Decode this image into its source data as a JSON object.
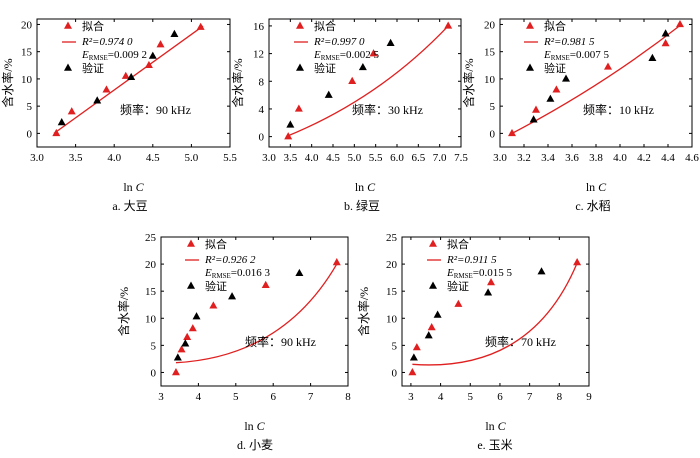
{
  "chart_data": [
    {
      "id": "a",
      "type": "scatter",
      "caption": "a. 大豆",
      "xlabel_prefix": "ln ",
      "xlabel_var": "C",
      "ylabel": "含水率/%",
      "xlim": [
        3.0,
        5.5
      ],
      "ylim": [
        -2.5,
        21
      ],
      "xticks": [
        "3.0",
        "3.5",
        "4.0",
        "4.5",
        "5.0",
        "5.5"
      ],
      "xtick_values": [
        3.0,
        3.5,
        4.0,
        4.5,
        5.0,
        5.5
      ],
      "yticks": [
        "0",
        "5",
        "10",
        "15",
        "20"
      ],
      "ytick_values": [
        0,
        5,
        10,
        15,
        20
      ],
      "legend": {
        "fit": "拟合",
        "r2_label": "R²=0.974 0",
        "rmse_label": "E",
        "rmse_sub": "RMSE",
        "rmse_value": "=0.009 2",
        "validation": "验证"
      },
      "frequency": "频率：90 kHz",
      "fit_points": {
        "x": [
          3.25,
          3.45,
          3.9,
          4.15,
          4.45,
          4.6,
          5.12
        ],
        "y": [
          0,
          4,
          8,
          10.5,
          12.5,
          16.3,
          19.5
        ]
      },
      "validation_points": {
        "x": [
          3.32,
          3.78,
          4.22,
          4.5,
          4.78
        ],
        "y": [
          2,
          6,
          10.3,
          14.2,
          18.2
        ]
      },
      "fit_line": {
        "x0": 3.22,
        "x1": 5.15,
        "y0": 0,
        "y1": 19.7,
        "curv": 0
      }
    },
    {
      "id": "b",
      "type": "scatter",
      "caption": "b. 绿豆",
      "xlabel_prefix": "ln ",
      "xlabel_var": "C",
      "ylabel": "含水率/%",
      "xlim": [
        3.0,
        7.5
      ],
      "ylim": [
        -1.5,
        17
      ],
      "xticks": [
        "3.0",
        "3.5",
        "4.0",
        "4.5",
        "5.0",
        "5.5",
        "6.0",
        "6.5",
        "7.0",
        "7.5"
      ],
      "xtick_values": [
        3.0,
        3.5,
        4.0,
        4.5,
        5.0,
        5.5,
        6.0,
        6.5,
        7.0,
        7.5
      ],
      "yticks": [
        "0",
        "4",
        "8",
        "12",
        "16"
      ],
      "ytick_values": [
        0,
        4,
        8,
        12,
        16
      ],
      "legend": {
        "fit": "拟合",
        "r2_label": "R²=0.997 0",
        "rmse_label": "E",
        "rmse_sub": "RMSE",
        "rmse_value": "=0.002 5",
        "validation": "验证"
      },
      "frequency": "频率：30 kHz",
      "fit_points": {
        "x": [
          3.45,
          3.7,
          4.95,
          5.45,
          7.2
        ],
        "y": [
          0,
          4,
          8,
          12,
          16
        ]
      },
      "validation_points": {
        "x": [
          3.5,
          4.4,
          5.2,
          5.85
        ],
        "y": [
          1.7,
          6,
          10,
          13.5
        ]
      },
      "fit_line": {
        "x0": 3.4,
        "x1": 7.2,
        "y0": 0,
        "y1": 16,
        "curv": 0.6
      }
    },
    {
      "id": "c",
      "type": "scatter",
      "caption": "c. 水稻",
      "xlabel_prefix": "ln ",
      "xlabel_var": "C",
      "ylabel": "含水率/%",
      "xlim": [
        3.0,
        4.6
      ],
      "ylim": [
        -2.5,
        21
      ],
      "xticks": [
        "3.0",
        "3.2",
        "3.4",
        "3.6",
        "3.8",
        "4.0",
        "4.2",
        "4.4",
        "4.6"
      ],
      "xtick_values": [
        3.0,
        3.2,
        3.4,
        3.6,
        3.8,
        4.0,
        4.2,
        4.4,
        4.6
      ],
      "yticks": [
        "0",
        "5",
        "10",
        "15",
        "20"
      ],
      "ytick_values": [
        0,
        5,
        10,
        15,
        20
      ],
      "legend": {
        "fit": "拟合",
        "r2_label": "R²=0.981 5",
        "rmse_label": "E",
        "rmse_sub": "RMSE",
        "rmse_value": "=0.007 5",
        "validation": "验证"
      },
      "frequency": "频率：10 kHz",
      "fit_points": {
        "x": [
          3.1,
          3.3,
          3.47,
          3.9,
          4.38,
          4.5
        ],
        "y": [
          0,
          4.3,
          8,
          12.2,
          16.5,
          20
        ]
      },
      "validation_points": {
        "x": [
          3.28,
          3.42,
          3.55,
          4.27,
          4.38
        ],
        "y": [
          2.5,
          6.3,
          10,
          13.8,
          18.3
        ]
      },
      "fit_line": {
        "x0": 3.1,
        "x1": 4.5,
        "y0": 0,
        "y1": 19.8,
        "curv": 0.25
      }
    },
    {
      "id": "d",
      "type": "scatter",
      "caption": "d. 小麦",
      "xlabel_prefix": "ln ",
      "xlabel_var": "C",
      "ylabel": "含水率/%",
      "xlim": [
        3,
        8
      ],
      "ylim": [
        -2.5,
        25
      ],
      "xticks": [
        "3",
        "4",
        "5",
        "6",
        "7",
        "8"
      ],
      "xtick_values": [
        3,
        4,
        5,
        6,
        7,
        8
      ],
      "yticks": [
        "0",
        "5",
        "10",
        "15",
        "20",
        "25"
      ],
      "ytick_values": [
        0,
        5,
        10,
        15,
        20,
        25
      ],
      "legend": {
        "fit": "拟合",
        "r2_label": "R²=0.926 2",
        "rmse_label": "E",
        "rmse_sub": "RMSE",
        "rmse_value": "=0.016 3",
        "validation": "验证"
      },
      "frequency": "频率：90 kHz",
      "fit_points": {
        "x": [
          3.4,
          3.55,
          3.7,
          3.85,
          4.4,
          5.8,
          7.7
        ],
        "y": [
          0,
          4.2,
          6.5,
          8.1,
          12.3,
          16.1,
          20.3
        ]
      },
      "validation_points": {
        "x": [
          3.45,
          3.65,
          3.95,
          4.9,
          6.7
        ],
        "y": [
          2.7,
          5.3,
          10.3,
          14,
          18.3
        ]
      },
      "fit_line": {
        "x0": 3.4,
        "x1": 7.7,
        "y0": 1.8,
        "y1": 20,
        "curv": 1.5
      }
    },
    {
      "id": "e",
      "type": "scatter",
      "caption": "e. 玉米",
      "xlabel_prefix": "ln ",
      "xlabel_var": "C",
      "ylabel": "含水率/%",
      "xlim": [
        2.7,
        9
      ],
      "ylim": [
        -2.5,
        25
      ],
      "xticks": [
        "3",
        "4",
        "5",
        "6",
        "7",
        "8",
        "9"
      ],
      "xtick_values": [
        3,
        4,
        5,
        6,
        7,
        8,
        9
      ],
      "yticks": [
        "0",
        "5",
        "10",
        "15",
        "20",
        "25"
      ],
      "ytick_values": [
        0,
        5,
        10,
        15,
        20,
        25
      ],
      "legend": {
        "fit": "拟合",
        "r2_label": "R²=0.911 5",
        "rmse_label": "E",
        "rmse_sub": "RMSE",
        "rmse_value": "=0.015 5",
        "validation": "验证"
      },
      "frequency": "频率：70 kHz",
      "fit_points": {
        "x": [
          3.05,
          3.2,
          3.7,
          4.6,
          5.7,
          8.6
        ],
        "y": [
          0,
          4.6,
          8.3,
          12.6,
          16.6,
          20.3
        ]
      },
      "validation_points": {
        "x": [
          3.1,
          3.6,
          3.9,
          5.6,
          7.4
        ],
        "y": [
          2.7,
          6.8,
          10.6,
          14.7,
          18.6
        ]
      },
      "fit_line": {
        "x0": 3.05,
        "x1": 8.6,
        "y0": 1.5,
        "y1": 20.2,
        "curv": 2.0
      }
    }
  ]
}
